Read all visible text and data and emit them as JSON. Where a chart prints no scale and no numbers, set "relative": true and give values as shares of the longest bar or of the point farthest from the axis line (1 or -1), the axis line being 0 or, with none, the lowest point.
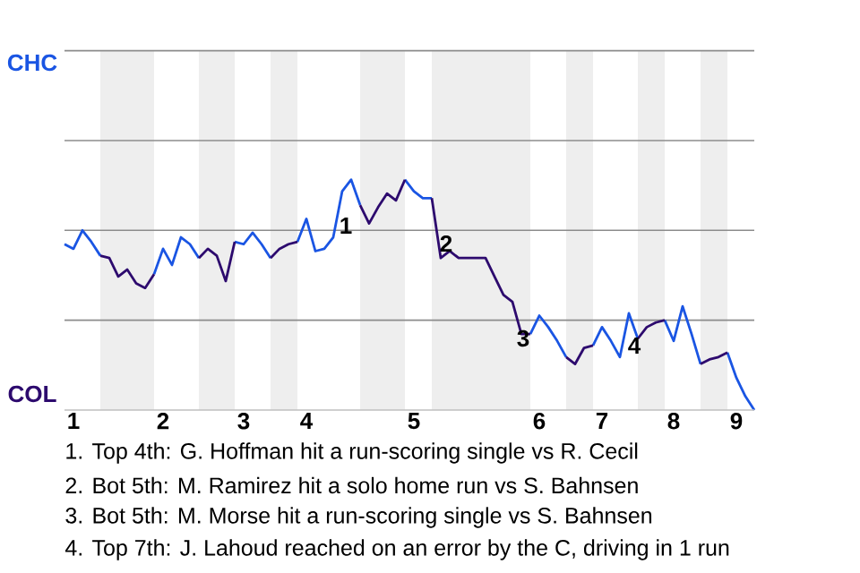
{
  "chart_data": {
    "type": "line",
    "relative": true,
    "categories": [
      null,
      "1",
      null,
      null,
      null,
      null,
      null,
      null,
      null,
      null,
      null,
      "2",
      null,
      null,
      null,
      null,
      null,
      null,
      null,
      null,
      "3",
      null,
      null,
      null,
      null,
      null,
      null,
      "4",
      null,
      null,
      null,
      null,
      null,
      null,
      null,
      null,
      null,
      null,
      null,
      "5",
      null,
      null,
      null,
      null,
      null,
      null,
      null,
      null,
      null,
      null,
      null,
      null,
      null,
      "6",
      null,
      null,
      null,
      null,
      null,
      null,
      "7",
      null,
      null,
      null,
      null,
      null,
      null,
      null,
      "8",
      null,
      null,
      null,
      null,
      null,
      null,
      "9",
      null,
      null
    ],
    "marker": "none",
    "line_style": "solid",
    "ref_lines": [
      {
        "axis": "y",
        "value": 0.39,
        "color": "#8c8c8c"
      },
      {
        "axis": "y",
        "value": 0.78,
        "color": "#8c8c8c"
      },
      {
        "axis": "y",
        "value": 1.17,
        "color": "#8c8c8c"
      },
      {
        "axis": "y",
        "value": 1.56,
        "color": "#8c8c8c"
      }
    ],
    "series": [
      {
        "color": "#1a55e3",
        "values": [
          0.72,
          0.7,
          0.78,
          0.73,
          0.67,
          null,
          null,
          null,
          null,
          null,
          0.59,
          0.7,
          0.63,
          0.75,
          0.72,
          0.66,
          null,
          null,
          null,
          0.73,
          0.72,
          0.77,
          0.72,
          0.66,
          null,
          null,
          0.73,
          0.83,
          0.69,
          0.7,
          0.75,
          0.95,
          1,
          0.89,
          null,
          null,
          null,
          null,
          1,
          0.95,
          0.92,
          0.92,
          null,
          null,
          null,
          null,
          null,
          null,
          null,
          null,
          null,
          null,
          0.33,
          0.41,
          0.36,
          0.3,
          0.23,
          null,
          null,
          0.28,
          0.36,
          0.3,
          0.23,
          0.42,
          0.31,
          null,
          null,
          0.39,
          0.3,
          0.45,
          0.33,
          0.2,
          null,
          null,
          0.25,
          0.14,
          0.06,
          0
        ]
      },
      {
        "color": "#2d0a6e",
        "values": [
          null,
          null,
          null,
          null,
          0.67,
          0.66,
          0.58,
          0.61,
          0.55,
          0.53,
          0.59,
          null,
          null,
          null,
          null,
          0.66,
          0.7,
          0.67,
          0.56,
          0.73,
          null,
          null,
          null,
          0.66,
          0.7,
          0.72,
          0.73,
          null,
          null,
          null,
          null,
          null,
          null,
          0.89,
          0.81,
          0.88,
          0.94,
          0.91,
          1,
          null,
          null,
          0.92,
          0.66,
          0.69,
          0.66,
          0.66,
          0.66,
          0.66,
          0.58,
          0.5,
          0.47,
          0.33,
          0.33,
          null,
          null,
          null,
          0.23,
          0.2,
          0.27,
          0.28,
          null,
          null,
          null,
          null,
          0.31,
          0.36,
          0.38,
          0.39,
          null,
          null,
          null,
          0.2,
          0.22,
          0.23,
          0.25,
          null,
          null,
          null
        ]
      }
    ],
    "annotations": [
      "CHC",
      "COL",
      "1",
      "2",
      "3",
      "4",
      "1. Top 4th: G. Hoffman hit a run-scoring single vs R. Cecil",
      "2. Bot 5th: M. Ramirez hit a solo home run vs S. Bahnsen",
      "3. Bot 5th: M. Morse hit a run-scoring single vs S. Bahnsen",
      "4. Top 7th: J. Lahoud reached on an error by the C, driving in 1 run"
    ]
  }
}
